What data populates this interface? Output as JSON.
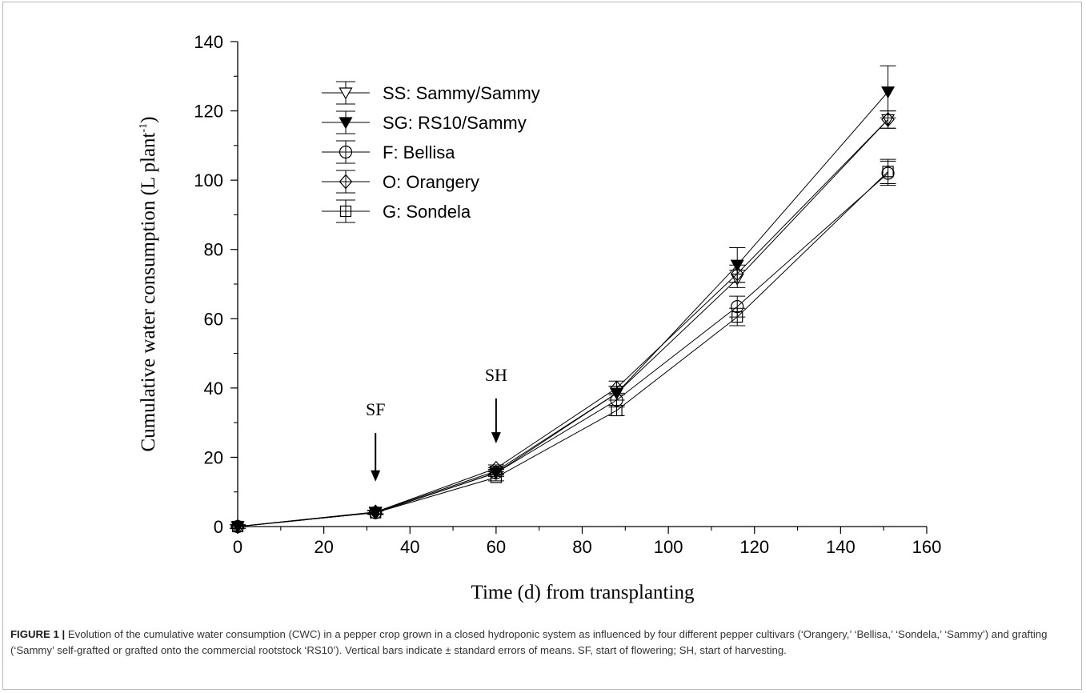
{
  "chart_data": {
    "type": "line",
    "xlabel": "Time (d) from transplanting",
    "ylabel": "Cumulative water consumption (L plant",
    "ylabel_sup": "-1",
    "ylabel_close": ")",
    "xlim": [
      0,
      160
    ],
    "ylim": [
      0,
      140
    ],
    "xticks": [
      0,
      20,
      40,
      60,
      80,
      100,
      120,
      140,
      160
    ],
    "yticks": [
      0,
      20,
      40,
      60,
      80,
      100,
      120,
      140
    ],
    "grid": false,
    "legend_position": "top-left",
    "x": [
      0,
      32,
      60,
      88,
      116,
      151
    ],
    "series": [
      {
        "name": "SS: Sammy/Sammy",
        "marker": "triangle-down-open",
        "values": [
          0,
          4.2,
          16.0,
          38.5,
          71.5,
          117.5
        ],
        "errors": [
          0.5,
          0.5,
          1.0,
          2.0,
          2.5,
          2.5
        ]
      },
      {
        "name": "SG: RS10/Sammy",
        "marker": "triangle-down-filled",
        "values": [
          0,
          4.0,
          15.5,
          38.5,
          75.5,
          125.5
        ],
        "errors": [
          0.5,
          0.5,
          1.0,
          2.0,
          5.0,
          7.5
        ]
      },
      {
        "name": "F: Bellisa",
        "marker": "circle-open",
        "values": [
          0,
          4.0,
          15.5,
          36.5,
          63.5,
          102.0
        ],
        "errors": [
          0.5,
          0.5,
          1.0,
          2.0,
          3.0,
          3.5
        ]
      },
      {
        "name": "O: Orangery",
        "marker": "diamond-open",
        "values": [
          0,
          4.2,
          16.8,
          40.0,
          73.0,
          117.5
        ],
        "errors": [
          0.5,
          0.5,
          1.0,
          2.0,
          2.5,
          2.5
        ]
      },
      {
        "name": "G: Sondela",
        "marker": "square-open",
        "values": [
          0,
          4.0,
          14.2,
          33.5,
          60.5,
          102.5
        ],
        "errors": [
          0.5,
          0.5,
          1.0,
          1.5,
          2.5,
          3.5
        ]
      }
    ],
    "annotations": [
      {
        "text": "SF",
        "x": 32,
        "arrow_top": 27,
        "arrow_bottom": 13
      },
      {
        "text": "SH",
        "x": 60,
        "arrow_top": 37,
        "arrow_bottom": 24
      }
    ]
  },
  "caption": {
    "label": "FIGURE 1 |",
    "text": " Evolution of the cumulative water consumption (CWC) in a pepper crop grown in a closed hydroponic system as influenced by four different pepper cultivars (‘Orangery,’ ‘Bellisa,’ ‘Sondela,’ ‘Sammy’) and grafting (‘Sammy’ self-grafted or grafted onto the commercial rootstock ‘RS10’). Vertical bars indicate ± standard errors of means. SF, start of flowering; SH, start of harvesting."
  }
}
